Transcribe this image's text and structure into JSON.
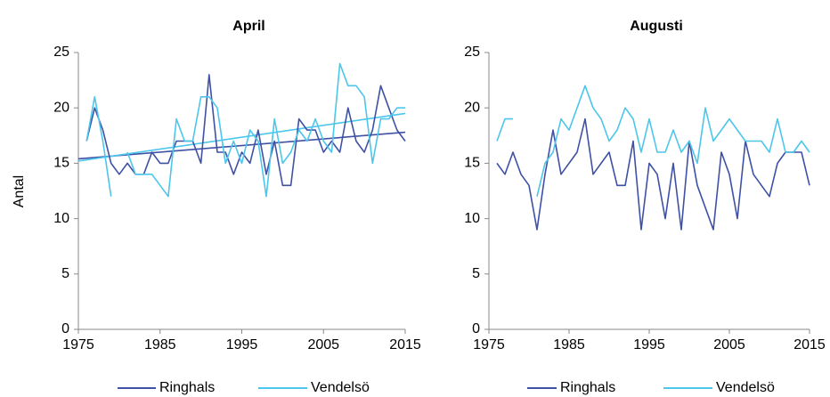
{
  "chart_data": [
    {
      "type": "line",
      "title": "April",
      "ylabel": "Antal",
      "x": [
        1976,
        1977,
        1978,
        1979,
        1980,
        1981,
        1982,
        1983,
        1984,
        1985,
        1986,
        1987,
        1988,
        1989,
        1990,
        1991,
        1992,
        1993,
        1994,
        1995,
        1996,
        1997,
        1998,
        1999,
        2000,
        2001,
        2002,
        2003,
        2004,
        2005,
        2006,
        2007,
        2008,
        2009,
        2010,
        2011,
        2012,
        2013,
        2014,
        2015
      ],
      "series": [
        {
          "name": "Ringhals",
          "color": "#3f51a5",
          "values": [
            17,
            20,
            18,
            15,
            14,
            15,
            14,
            14,
            16,
            15,
            15,
            17,
            17,
            17,
            15,
            23,
            16,
            16,
            14,
            16,
            15,
            18,
            14,
            17,
            13,
            13,
            19,
            18,
            18,
            16,
            17,
            16,
            20,
            17,
            16,
            18,
            22,
            20,
            18,
            17
          ]
        },
        {
          "name": "Vendelsö",
          "color": "#4cc6ea",
          "values": [
            17,
            21,
            17,
            12,
            null,
            16,
            14,
            14,
            14,
            13,
            12,
            19,
            17,
            17,
            21,
            21,
            20,
            15,
            17,
            15,
            18,
            17,
            12,
            19,
            15,
            16,
            18,
            17,
            19,
            17,
            16,
            24,
            22,
            22,
            21,
            15,
            19,
            19,
            20,
            20
          ]
        }
      ],
      "trendlines": [
        {
          "color": "#3f51a5",
          "x": [
            1975,
            2015
          ],
          "values": [
            15.4,
            17.8
          ]
        },
        {
          "color": "#4cc6ea",
          "x": [
            1975,
            2015
          ],
          "values": [
            15.2,
            19.5
          ]
        }
      ],
      "xlim": [
        1975,
        2015
      ],
      "xticks": [
        1975,
        1985,
        1995,
        2005,
        2015
      ],
      "ylim": [
        0,
        25
      ],
      "yticks": [
        0,
        5,
        10,
        15,
        20,
        25
      ]
    },
    {
      "type": "line",
      "title": "Augusti",
      "x": [
        1976,
        1977,
        1978,
        1979,
        1980,
        1981,
        1982,
        1983,
        1984,
        1985,
        1986,
        1987,
        1988,
        1989,
        1990,
        1991,
        1992,
        1993,
        1994,
        1995,
        1996,
        1997,
        1998,
        1999,
        2000,
        2001,
        2002,
        2003,
        2004,
        2005,
        2006,
        2007,
        2008,
        2009,
        2010,
        2011,
        2012,
        2013,
        2014,
        2015
      ],
      "series": [
        {
          "name": "Ringhals",
          "color": "#3f51a5",
          "values": [
            15,
            14,
            16,
            14,
            13,
            9,
            14,
            18,
            14,
            15,
            16,
            19,
            14,
            15,
            16,
            13,
            13,
            17,
            9,
            15,
            14,
            10,
            15,
            9,
            17,
            13,
            11,
            9,
            16,
            14,
            10,
            17,
            14,
            13,
            12,
            15,
            16,
            16,
            16,
            13
          ]
        },
        {
          "name": "Vendelsö",
          "color": "#4cc6ea",
          "values": [
            17,
            19,
            19,
            null,
            null,
            12,
            15,
            16,
            19,
            18,
            20,
            22,
            20,
            19,
            17,
            18,
            20,
            19,
            16,
            19,
            16,
            16,
            18,
            16,
            17,
            15,
            20,
            17,
            18,
            19,
            18,
            17,
            17,
            17,
            16,
            19,
            16,
            16,
            17,
            16
          ]
        }
      ],
      "xlim": [
        1975,
        2015
      ],
      "xticks": [
        1975,
        1985,
        1995,
        2005,
        2015
      ],
      "ylim": [
        0,
        25
      ],
      "yticks": [
        0,
        5,
        10,
        15,
        20,
        25
      ]
    }
  ]
}
